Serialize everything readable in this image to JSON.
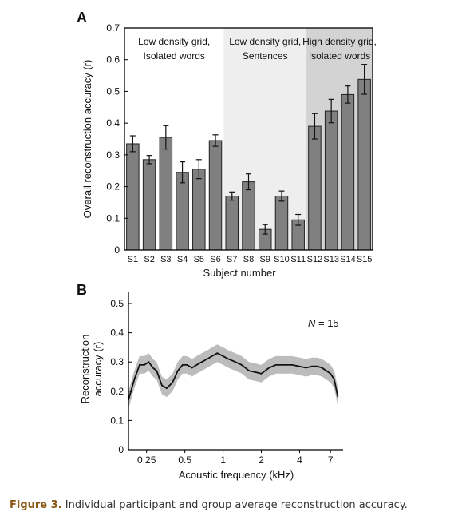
{
  "panelA": {
    "label": "A",
    "chart_data": {
      "type": "bar",
      "categories": [
        "S1",
        "S2",
        "S3",
        "S4",
        "S5",
        "S6",
        "S7",
        "S8",
        "S9",
        "S10",
        "S11",
        "S12",
        "S13",
        "S14",
        "S15"
      ],
      "values": [
        0.335,
        0.285,
        0.355,
        0.245,
        0.255,
        0.345,
        0.17,
        0.215,
        0.065,
        0.17,
        0.095,
        0.39,
        0.438,
        0.49,
        0.538
      ],
      "errors": [
        0.025,
        0.013,
        0.037,
        0.033,
        0.03,
        0.018,
        0.013,
        0.025,
        0.015,
        0.016,
        0.017,
        0.04,
        0.037,
        0.027,
        0.047
      ],
      "xlabel": "Subject number",
      "ylabel": "Overall reconstruction accuracy (r)",
      "ylim": [
        0,
        0.7
      ],
      "yticks": [
        0,
        0.1,
        0.2,
        0.3,
        0.4,
        0.5,
        0.6,
        0.7
      ],
      "ytick_labels": [
        "0",
        "0.1",
        "0.2",
        "0.3",
        "0.4",
        "0.5",
        "0.6",
        "0.7"
      ],
      "bar_color": "#808080",
      "regions": [
        {
          "line1": "Low density grid,",
          "line2": "Isolated words",
          "first": 0,
          "last": 5,
          "color": "#ffffff"
        },
        {
          "line1": "Low density grid,",
          "line2": "Sentences",
          "first": 6,
          "last": 10,
          "color": "#eeeeee"
        },
        {
          "line1": "High density grid,",
          "line2": "Isolated words",
          "first": 11,
          "last": 14,
          "color": "#d3d3d3"
        }
      ]
    }
  },
  "panelB": {
    "label": "B",
    "annotation": "N = 15",
    "chart_data": {
      "type": "line",
      "xscale": "log",
      "x": [
        0.18,
        0.2,
        0.22,
        0.24,
        0.26,
        0.28,
        0.3,
        0.33,
        0.36,
        0.4,
        0.44,
        0.48,
        0.52,
        0.57,
        0.62,
        0.68,
        0.75,
        0.82,
        0.9,
        1.0,
        1.1,
        1.25,
        1.4,
        1.6,
        1.8,
        2.0,
        2.3,
        2.6,
        3.0,
        3.5,
        4.0,
        4.5,
        5.0,
        5.5,
        6.0,
        6.5,
        7.0,
        7.5,
        8.0
      ],
      "y": [
        0.17,
        0.24,
        0.29,
        0.29,
        0.3,
        0.28,
        0.27,
        0.22,
        0.21,
        0.23,
        0.27,
        0.29,
        0.29,
        0.28,
        0.29,
        0.3,
        0.31,
        0.32,
        0.33,
        0.32,
        0.31,
        0.3,
        0.29,
        0.27,
        0.265,
        0.26,
        0.28,
        0.29,
        0.29,
        0.29,
        0.285,
        0.28,
        0.285,
        0.285,
        0.28,
        0.27,
        0.26,
        0.24,
        0.18
      ],
      "band": 0.03,
      "band_color": "#bcbcbc",
      "xlabel": "Acoustic frequency (kHz)",
      "ylabel_line1": "Reconstruction",
      "ylabel_line2": "accuracy (r)",
      "ylim": [
        0,
        0.5
      ],
      "xlim": [
        0.18,
        8.8
      ],
      "yticks": [
        0,
        0.1,
        0.2,
        0.3,
        0.4,
        0.5
      ],
      "ytick_labels": [
        "0",
        "0.1",
        "0.2",
        "0.3",
        "0.4",
        "0.5"
      ],
      "xticks": [
        0.25,
        0.5,
        1,
        2,
        4,
        7
      ],
      "xtick_labels": [
        "0.25",
        "0.5",
        "1",
        "2",
        "4",
        "7"
      ]
    }
  },
  "caption": {
    "label": "Figure 3.",
    "text": " Individual participant and group average reconstruction accuracy."
  }
}
